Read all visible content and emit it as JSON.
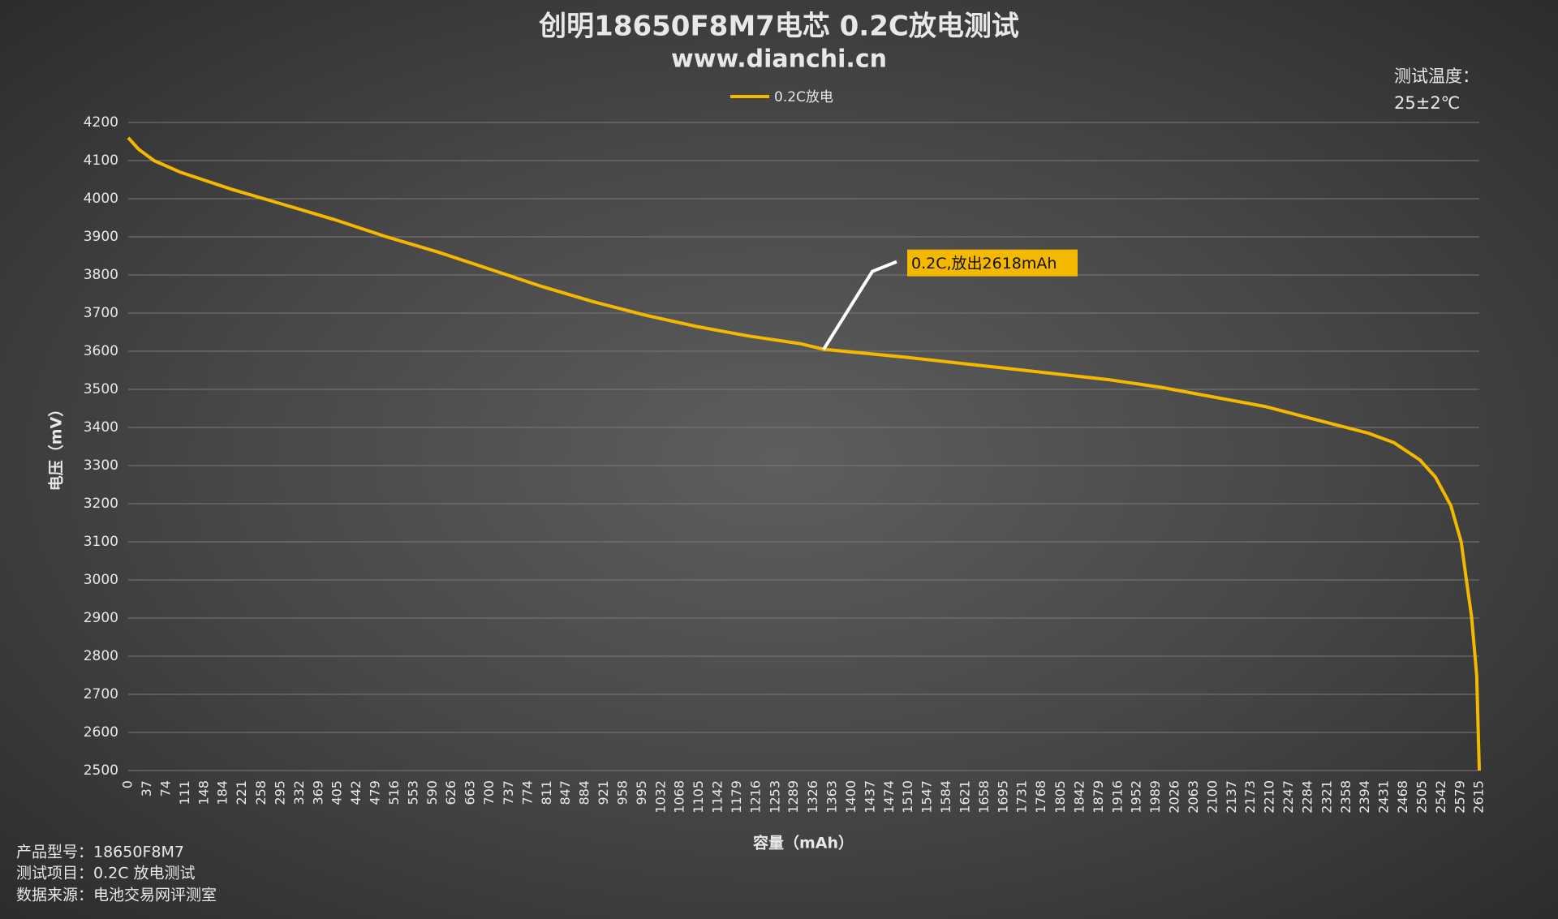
{
  "chart_data": {
    "type": "line",
    "title": "创明18650F8M7电芯 0.2C放电测试",
    "subtitle": "www.dianchi.cn",
    "x_label": "容量（mAh）",
    "y_label": "电压（mV）",
    "temperature_note": [
      "测试温度：",
      "25±2℃"
    ],
    "notes": [
      "产品型号：18650F8M7",
      "测试项目：0.2C 放电测试",
      "数据来源：电池交易网评测室"
    ],
    "annotation": {
      "text": "0.2C,放出2618mAh",
      "x": 1346,
      "y": 3605
    },
    "legend": "top",
    "grid": true,
    "x": [
      0,
      20,
      50,
      100,
      200,
      300,
      400,
      500,
      600,
      700,
      800,
      900,
      1000,
      1100,
      1200,
      1300,
      1346,
      1500,
      1600,
      1700,
      1800,
      1900,
      2000,
      2100,
      2200,
      2300,
      2400,
      2450,
      2500,
      2530,
      2560,
      2580,
      2590,
      2600,
      2610,
      2615
    ],
    "series": [
      {
        "name": "0.2C放电",
        "color": "#f5b800",
        "values": [
          4160,
          4130,
          4100,
          4070,
          4025,
          3985,
          3945,
          3900,
          3860,
          3815,
          3770,
          3730,
          3695,
          3665,
          3640,
          3620,
          3605,
          3585,
          3570,
          3555,
          3540,
          3525,
          3505,
          3480,
          3455,
          3420,
          3385,
          3360,
          3315,
          3270,
          3195,
          3100,
          3000,
          2905,
          2750,
          2500
        ]
      }
    ],
    "xlim": [
      0,
      2615
    ],
    "xticks": [
      0,
      37,
      74,
      111,
      148,
      184,
      221,
      258,
      295,
      332,
      369,
      405,
      442,
      479,
      516,
      553,
      590,
      626,
      663,
      700,
      737,
      774,
      811,
      847,
      884,
      921,
      958,
      995,
      1032,
      1068,
      1105,
      1142,
      1179,
      1216,
      1253,
      1289,
      1326,
      1363,
      1400,
      1437,
      1474,
      1510,
      1547,
      1584,
      1621,
      1658,
      1695,
      1731,
      1768,
      1805,
      1842,
      1879,
      1916,
      1952,
      1989,
      2026,
      2063,
      2100,
      2137,
      2173,
      2210,
      2247,
      2284,
      2321,
      2358,
      2394,
      2431,
      2468,
      2505,
      2542,
      2579,
      2615
    ],
    "ylim": [
      2500,
      4200
    ],
    "yticks": [
      2500,
      2600,
      2700,
      2800,
      2900,
      3000,
      3100,
      3200,
      3300,
      3400,
      3500,
      3600,
      3700,
      3800,
      3900,
      4000,
      4100,
      4200
    ]
  }
}
